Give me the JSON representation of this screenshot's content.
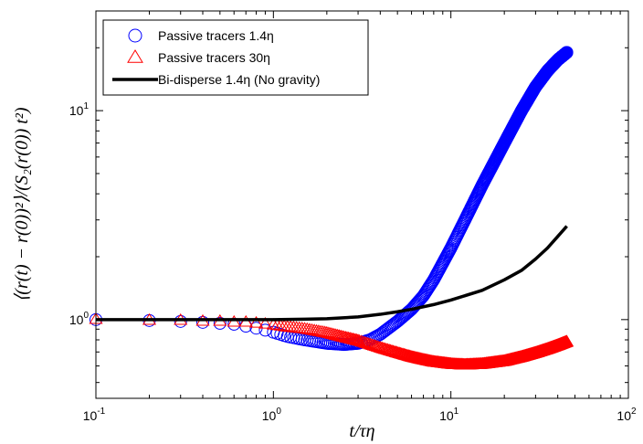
{
  "chart_data": {
    "type": "scatter",
    "xlabel": "t/τη",
    "ylabel": "⟨(r(t) − r(0))²⟩/(S₂(r(0)) t²)",
    "x_scale": "log",
    "y_scale": "log",
    "xlim": [
      0.1,
      100
    ],
    "ylim": [
      0.42,
      30
    ],
    "x_ticks": [
      {
        "value": 0.1,
        "mantissa": "10",
        "exp": "-1"
      },
      {
        "value": 1,
        "mantissa": "10",
        "exp": "0"
      },
      {
        "value": 10,
        "mantissa": "10",
        "exp": "1"
      },
      {
        "value": 100,
        "mantissa": "10",
        "exp": "2"
      }
    ],
    "y_ticks": [
      {
        "value": 1,
        "mantissa": "10",
        "exp": "0"
      },
      {
        "value": 10,
        "mantissa": "10",
        "exp": "1"
      }
    ],
    "grid": false,
    "legend_position": "top-left",
    "series": [
      {
        "name": "Passive tracers 1.4η",
        "marker": "circle",
        "color": "#0000ff",
        "x": [
          0.1,
          0.2,
          0.3,
          0.4,
          0.5,
          0.6,
          0.7,
          0.8,
          0.9,
          1.0,
          1.2,
          1.5,
          2.0,
          2.5,
          3.0,
          3.5,
          4.0,
          5.0,
          6.0,
          7.0,
          8.0,
          10.0,
          12.0,
          15.0,
          20.0,
          25.0,
          30.0,
          35.0,
          40.0,
          45.0
        ],
        "y": [
          1.0,
          0.99,
          0.98,
          0.97,
          0.96,
          0.95,
          0.93,
          0.91,
          0.89,
          0.87,
          0.83,
          0.8,
          0.77,
          0.76,
          0.77,
          0.8,
          0.85,
          0.98,
          1.12,
          1.3,
          1.55,
          2.2,
          3.0,
          4.4,
          7.0,
          10.0,
          13.0,
          15.5,
          17.5,
          19.0
        ]
      },
      {
        "name": "Passive tracers 30η",
        "marker": "triangle",
        "color": "#ff0000",
        "x": [
          0.1,
          0.2,
          0.3,
          0.4,
          0.5,
          0.6,
          0.7,
          0.8,
          0.9,
          1.0,
          1.2,
          1.5,
          2.0,
          2.5,
          3.0,
          4.0,
          5.0,
          6.0,
          7.0,
          8.0,
          10.0,
          12.0,
          15.0,
          20.0,
          25.0,
          30.0,
          35.0,
          40.0,
          45.0
        ],
        "y": [
          1.0,
          0.99,
          0.99,
          0.98,
          0.98,
          0.97,
          0.97,
          0.96,
          0.95,
          0.94,
          0.92,
          0.9,
          0.86,
          0.82,
          0.79,
          0.73,
          0.69,
          0.66,
          0.64,
          0.625,
          0.61,
          0.605,
          0.61,
          0.63,
          0.66,
          0.69,
          0.72,
          0.75,
          0.78
        ]
      },
      {
        "name": "Bi-disperse 1.4η (No gravity)",
        "marker": "line",
        "color": "#000000",
        "x": [
          0.1,
          0.5,
          1.0,
          1.5,
          2.0,
          3.0,
          4.0,
          5.0,
          6.0,
          8.0,
          10.0,
          15.0,
          20.0,
          25.0,
          30.0,
          35.0,
          40.0,
          45.0
        ],
        "y": [
          1.0,
          1.0,
          1.0,
          1.005,
          1.01,
          1.03,
          1.06,
          1.09,
          1.12,
          1.18,
          1.24,
          1.38,
          1.55,
          1.72,
          1.95,
          2.2,
          2.5,
          2.8
        ]
      }
    ]
  }
}
